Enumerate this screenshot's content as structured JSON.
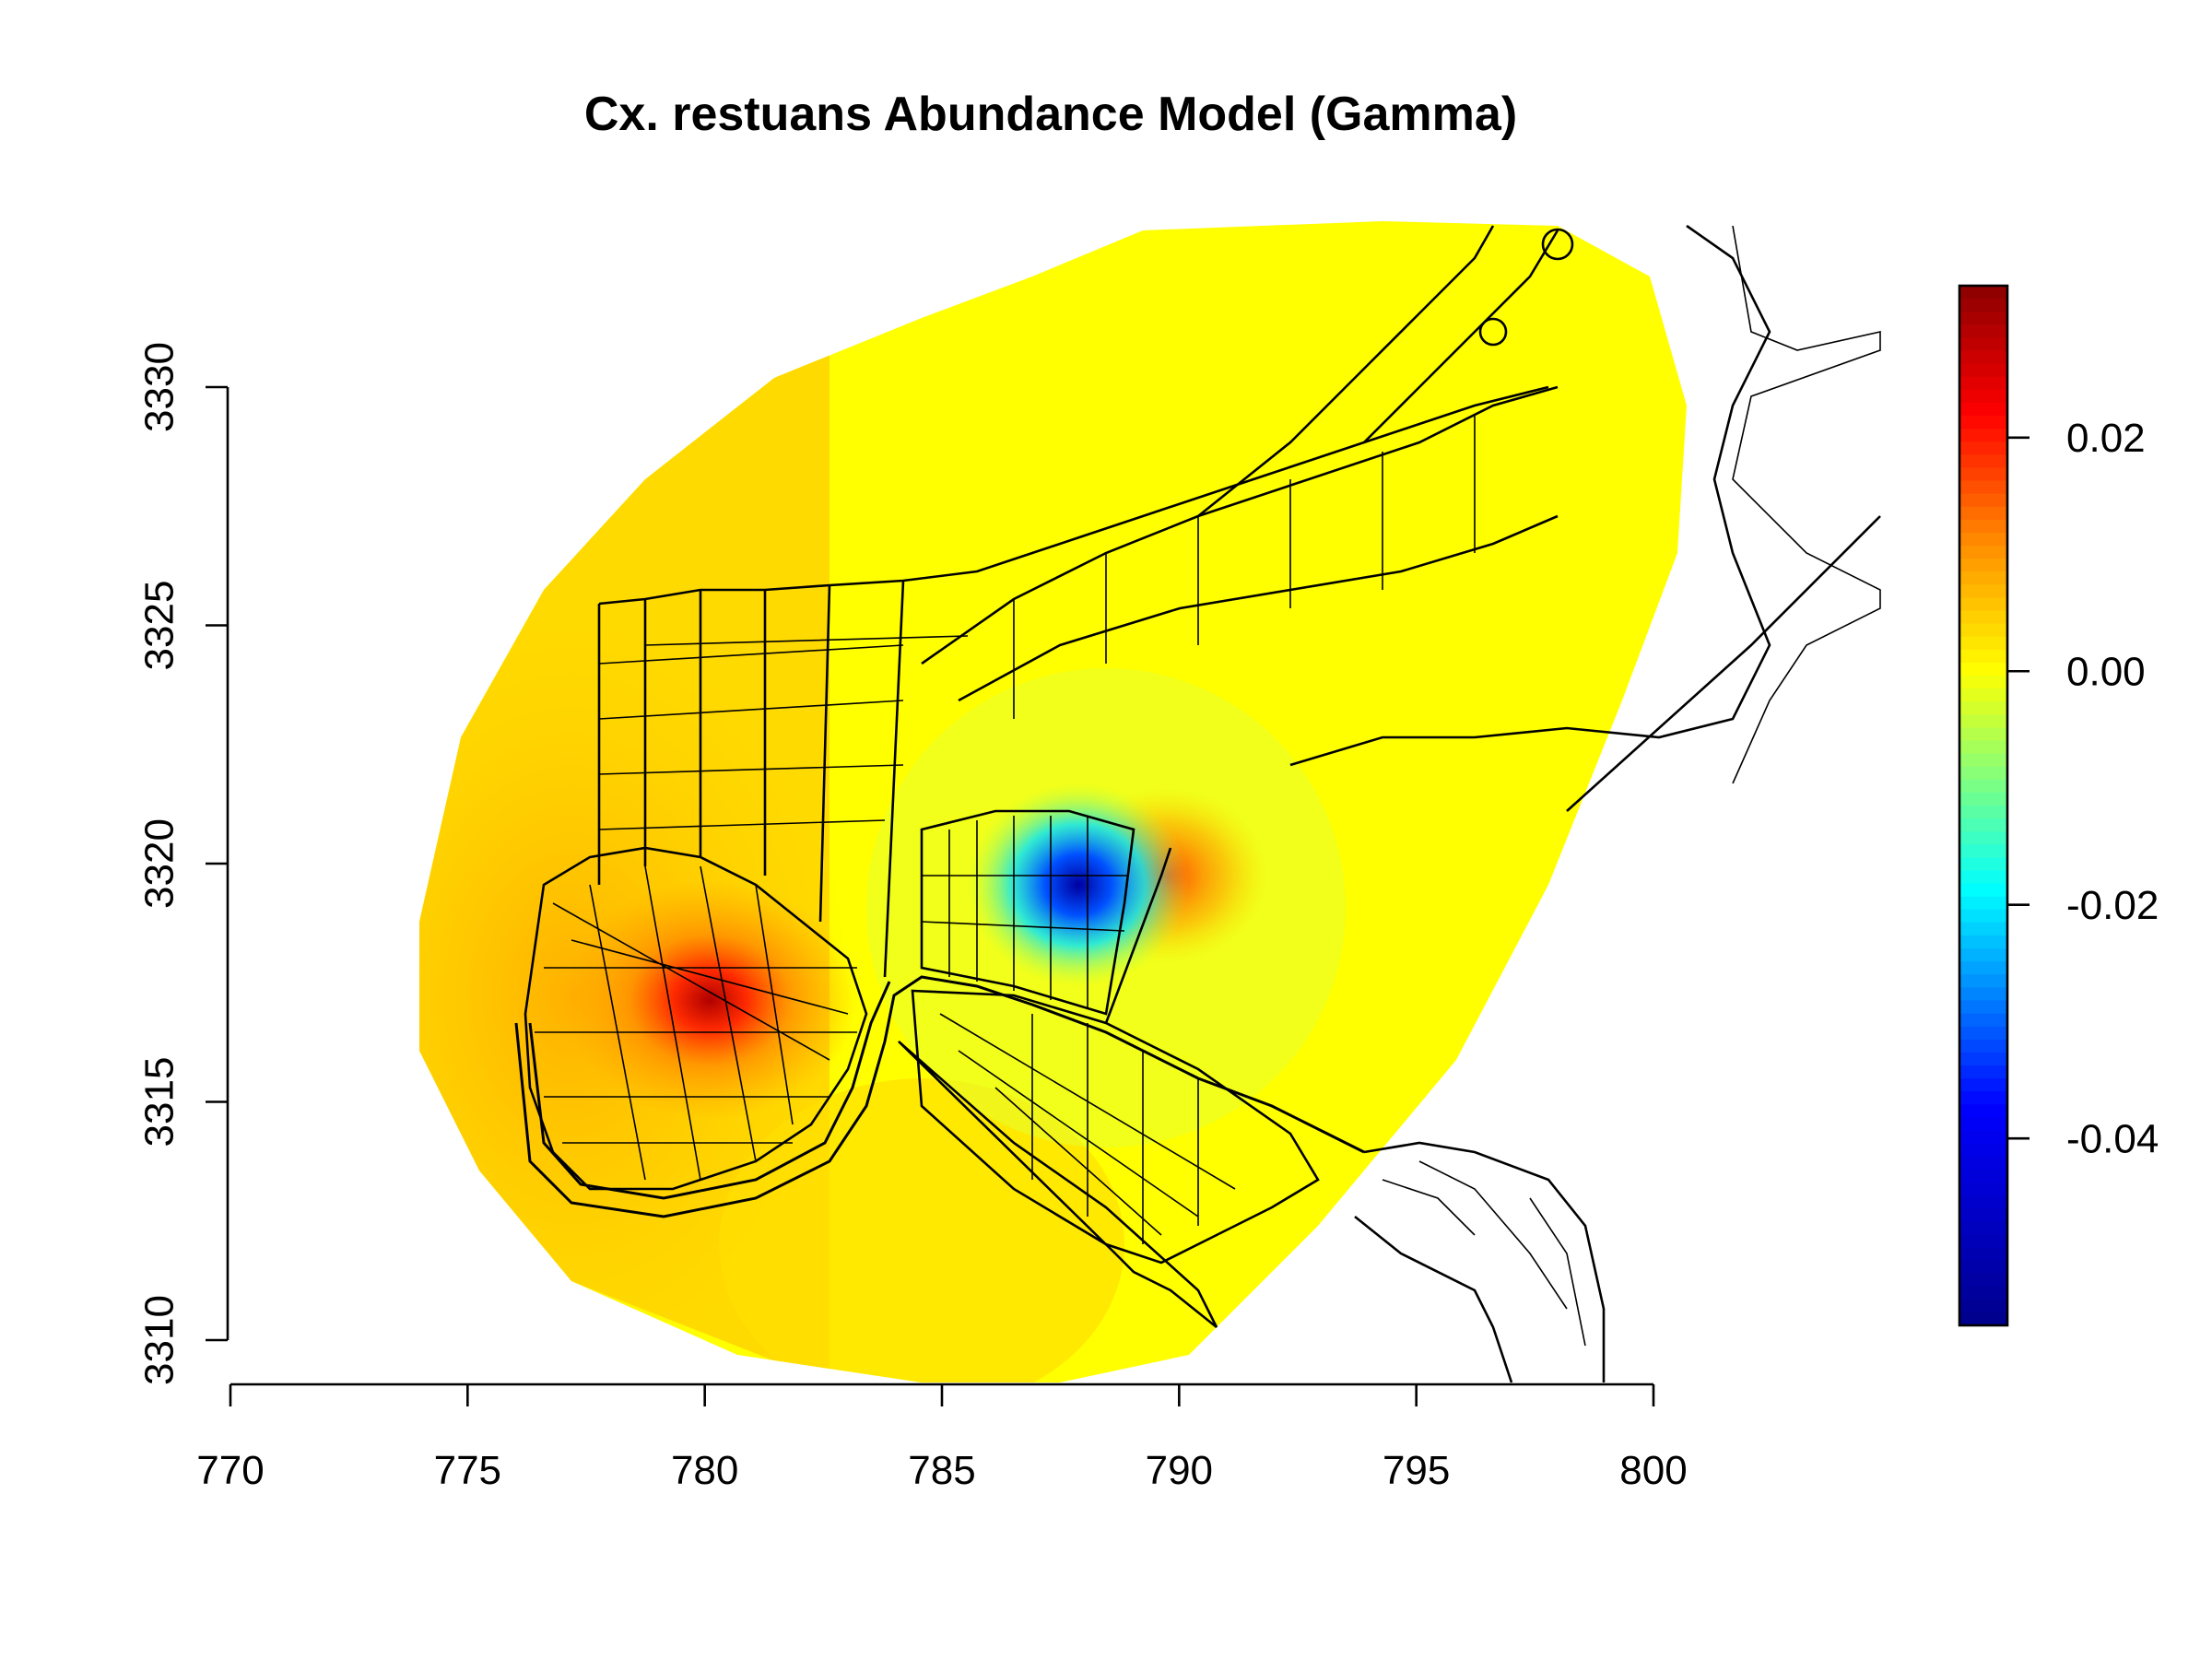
{
  "title": "Cx. restuans Abundance Model (Gamma)",
  "chart_data": {
    "type": "heatmap",
    "title": "Cx. restuans Abundance Model (Gamma)",
    "xlabel": "",
    "ylabel": "",
    "xlim": [
      770,
      800
    ],
    "ylim": [
      3310,
      3330
    ],
    "x_ticks": [
      "770",
      "775",
      "780",
      "785",
      "790",
      "795",
      "800"
    ],
    "y_ticks": [
      "3310",
      "3315",
      "3320",
      "3325",
      "3330"
    ],
    "colorbar": {
      "range": [
        -0.056,
        0.033
      ],
      "ticks": [
        "0.02",
        "0.00",
        "-0.02",
        "-0.04"
      ],
      "tick_values": [
        0.02,
        0.0,
        -0.02,
        -0.04
      ],
      "palette": [
        "#00008b",
        "#0000ff",
        "#00ffff",
        "#ffff00",
        "#ff8c00",
        "#ff0000",
        "#8b0000"
      ]
    },
    "hotspots": [
      {
        "x": 780.4,
        "y": 3317.3,
        "value": 0.033
      },
      {
        "x": 788.0,
        "y": 3319.6,
        "value": -0.056
      },
      {
        "x": 789.8,
        "y": 3319.5,
        "value": 0.012
      }
    ],
    "background_value": 0.0
  }
}
